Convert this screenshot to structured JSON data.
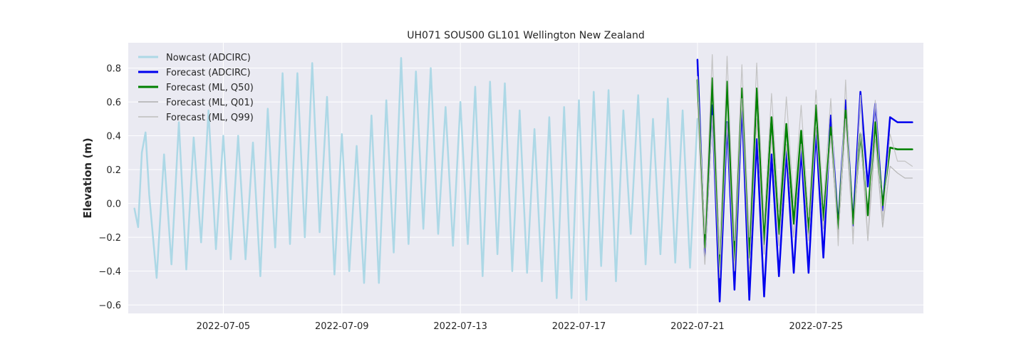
{
  "chart_data": {
    "type": "line",
    "title": "UH071 SOUS00 GL101 Wellington New Zealand",
    "xlabel": "",
    "ylabel": "Elevation (m)",
    "x_axis": "date",
    "xlim": [
      "2022-07-01T19:00",
      "2022-07-28T15:00"
    ],
    "ylim": [
      -0.65,
      0.95
    ],
    "xticks": [
      "2022-07-05",
      "2022-07-09",
      "2022-07-13",
      "2022-07-17",
      "2022-07-21",
      "2022-07-25"
    ],
    "yticks": [
      -0.6,
      -0.4,
      -0.2,
      0.0,
      0.2,
      0.4,
      0.6,
      0.8
    ],
    "ytick_labels": [
      "−0.6",
      "−0.4",
      "−0.2",
      "0.0",
      "0.2",
      "0.4",
      "0.6",
      "0.8"
    ],
    "grid": true,
    "legend_position": "upper-left",
    "background_color": "#eaeaf2",
    "series": [
      {
        "name": "Nowcast (ADCIRC)",
        "color": "#add8e6",
        "width": 2.5,
        "x": [
          "2022-07-02T00:00",
          "2022-07-02T03:00",
          "2022-07-02T06:00",
          "2022-07-02T09:00",
          "2022-07-02T12:00",
          "2022-07-02T18:00",
          "2022-07-03T00:00",
          "2022-07-03T06:00",
          "2022-07-03T12:00",
          "2022-07-03T18:00",
          "2022-07-04T00:00",
          "2022-07-04T06:00",
          "2022-07-04T12:00",
          "2022-07-04T18:00",
          "2022-07-05T00:00",
          "2022-07-05T06:00",
          "2022-07-05T12:00",
          "2022-07-05T18:00",
          "2022-07-06T00:00",
          "2022-07-06T06:00",
          "2022-07-06T12:00",
          "2022-07-06T18:00",
          "2022-07-07T00:00",
          "2022-07-07T06:00",
          "2022-07-07T12:00",
          "2022-07-07T18:00",
          "2022-07-08T00:00",
          "2022-07-08T06:00",
          "2022-07-08T12:00",
          "2022-07-08T18:00",
          "2022-07-09T00:00",
          "2022-07-09T06:00",
          "2022-07-09T12:00",
          "2022-07-09T18:00",
          "2022-07-10T00:00",
          "2022-07-10T06:00",
          "2022-07-10T12:00",
          "2022-07-10T18:00",
          "2022-07-11T00:00",
          "2022-07-11T06:00",
          "2022-07-11T12:00",
          "2022-07-11T18:00",
          "2022-07-12T00:00",
          "2022-07-12T06:00",
          "2022-07-12T12:00",
          "2022-07-12T18:00",
          "2022-07-13T00:00",
          "2022-07-13T06:00",
          "2022-07-13T12:00",
          "2022-07-13T18:00",
          "2022-07-14T00:00",
          "2022-07-14T06:00",
          "2022-07-14T12:00",
          "2022-07-14T18:00",
          "2022-07-15T00:00",
          "2022-07-15T06:00",
          "2022-07-15T12:00",
          "2022-07-15T18:00",
          "2022-07-16T00:00",
          "2022-07-16T06:00",
          "2022-07-16T12:00",
          "2022-07-16T18:00",
          "2022-07-17T00:00",
          "2022-07-17T06:00",
          "2022-07-17T12:00",
          "2022-07-17T18:00",
          "2022-07-18T00:00",
          "2022-07-18T06:00",
          "2022-07-18T12:00",
          "2022-07-18T18:00",
          "2022-07-19T00:00",
          "2022-07-19T06:00",
          "2022-07-19T12:00",
          "2022-07-19T18:00",
          "2022-07-20T00:00",
          "2022-07-20T06:00",
          "2022-07-20T12:00",
          "2022-07-20T18:00",
          "2022-07-21T00:00"
        ],
        "y": [
          -0.03,
          -0.14,
          0.3,
          0.42,
          0.05,
          -0.44,
          0.29,
          -0.36,
          0.48,
          -0.39,
          0.39,
          -0.23,
          0.55,
          -0.27,
          0.4,
          -0.33,
          0.4,
          -0.33,
          0.36,
          -0.43,
          0.56,
          -0.26,
          0.77,
          -0.24,
          0.77,
          -0.2,
          0.83,
          -0.17,
          0.63,
          -0.42,
          0.41,
          -0.4,
          0.34,
          -0.47,
          0.52,
          -0.47,
          0.61,
          -0.29,
          0.86,
          -0.24,
          0.78,
          -0.15,
          0.8,
          -0.18,
          0.57,
          -0.25,
          0.6,
          -0.24,
          0.69,
          -0.43,
          0.72,
          -0.3,
          0.71,
          -0.4,
          0.55,
          -0.41,
          0.44,
          -0.46,
          0.51,
          -0.56,
          0.57,
          -0.56,
          0.61,
          -0.57,
          0.66,
          -0.37,
          0.67,
          -0.46,
          0.55,
          -0.18,
          0.64,
          -0.36,
          0.5,
          -0.3,
          0.62,
          -0.35,
          0.55,
          -0.38,
          0.5
        ]
      },
      {
        "name": "Forecast (ADCIRC)",
        "color": "#0000ee",
        "width": 2.5,
        "x": [
          "2022-07-21T00:00",
          "2022-07-21T06:00",
          "2022-07-21T12:00",
          "2022-07-21T18:00",
          "2022-07-22T00:00",
          "2022-07-22T06:00",
          "2022-07-22T12:00",
          "2022-07-22T18:00",
          "2022-07-23T00:00",
          "2022-07-23T06:00",
          "2022-07-23T12:00",
          "2022-07-23T18:00",
          "2022-07-24T00:00",
          "2022-07-24T06:00",
          "2022-07-24T12:00",
          "2022-07-24T18:00",
          "2022-07-25T00:00",
          "2022-07-25T06:00",
          "2022-07-25T12:00",
          "2022-07-25T18:00",
          "2022-07-26T00:00",
          "2022-07-26T06:00",
          "2022-07-26T12:00",
          "2022-07-26T18:00",
          "2022-07-27T00:00",
          "2022-07-27T06:00",
          "2022-07-27T12:00",
          "2022-07-27T18:00",
          "2022-07-28T00:00",
          "2022-07-28T06:00"
        ],
        "y": [
          0.85,
          -0.31,
          0.58,
          -0.58,
          0.48,
          -0.51,
          0.6,
          -0.57,
          0.38,
          -0.55,
          0.29,
          -0.43,
          0.31,
          -0.41,
          0.32,
          -0.41,
          0.43,
          -0.32,
          0.52,
          -0.14,
          0.61,
          -0.13,
          0.66,
          0.1,
          0.59,
          -0.04,
          0.51,
          0.48,
          0.48,
          0.48
        ]
      },
      {
        "name": "Forecast (ML, Q50)",
        "color": "#008000",
        "width": 2.5,
        "x": [
          "2022-07-21T00:00",
          "2022-07-21T06:00",
          "2022-07-21T12:00",
          "2022-07-21T18:00",
          "2022-07-22T00:00",
          "2022-07-22T06:00",
          "2022-07-22T12:00",
          "2022-07-22T18:00",
          "2022-07-23T00:00",
          "2022-07-23T06:00",
          "2022-07-23T12:00",
          "2022-07-23T18:00",
          "2022-07-24T00:00",
          "2022-07-24T06:00",
          "2022-07-24T12:00",
          "2022-07-24T18:00",
          "2022-07-25T00:00",
          "2022-07-25T06:00",
          "2022-07-25T12:00",
          "2022-07-25T18:00",
          "2022-07-26T00:00",
          "2022-07-26T06:00",
          "2022-07-26T12:00",
          "2022-07-26T18:00",
          "2022-07-27T00:00",
          "2022-07-27T06:00",
          "2022-07-27T12:00",
          "2022-07-27T18:00",
          "2022-07-28T00:00",
          "2022-07-28T06:00"
        ],
        "y": [
          0.73,
          -0.26,
          0.74,
          -0.38,
          0.72,
          -0.34,
          0.68,
          -0.32,
          0.68,
          -0.24,
          0.51,
          -0.18,
          0.47,
          -0.12,
          0.43,
          -0.18,
          0.58,
          -0.1,
          0.45,
          -0.15,
          0.55,
          -0.12,
          0.41,
          -0.07,
          0.48,
          -0.01,
          0.33,
          0.32,
          0.32,
          0.32
        ]
      },
      {
        "name": "Forecast (ML, Q01)",
        "color": "#b8b8b8",
        "width": 1.2,
        "x": [
          "2022-07-21T00:00",
          "2022-07-21T06:00",
          "2022-07-21T12:00",
          "2022-07-21T18:00",
          "2022-07-22T00:00",
          "2022-07-22T06:00",
          "2022-07-22T12:00",
          "2022-07-22T18:00",
          "2022-07-23T00:00",
          "2022-07-23T06:00",
          "2022-07-23T12:00",
          "2022-07-23T18:00",
          "2022-07-24T00:00",
          "2022-07-24T06:00",
          "2022-07-24T12:00",
          "2022-07-24T18:00",
          "2022-07-25T00:00",
          "2022-07-25T06:00",
          "2022-07-25T12:00",
          "2022-07-25T18:00",
          "2022-07-26T00:00",
          "2022-07-26T06:00",
          "2022-07-26T12:00",
          "2022-07-26T18:00",
          "2022-07-27T00:00",
          "2022-07-27T06:00",
          "2022-07-27T12:00",
          "2022-07-27T18:00",
          "2022-07-28T00:00",
          "2022-07-28T06:00"
        ],
        "y": [
          0.6,
          -0.36,
          0.52,
          -0.44,
          0.48,
          -0.4,
          0.62,
          -0.4,
          0.5,
          -0.3,
          0.4,
          -0.25,
          0.35,
          -0.2,
          0.35,
          -0.22,
          0.45,
          -0.15,
          0.4,
          -0.2,
          0.5,
          -0.2,
          0.42,
          -0.22,
          0.38,
          -0.14,
          0.22,
          0.18,
          0.15,
          0.15
        ]
      },
      {
        "name": "Forecast (ML, Q99)",
        "color": "#c4c4c4",
        "width": 1.2,
        "x": [
          "2022-07-21T00:00",
          "2022-07-21T06:00",
          "2022-07-21T12:00",
          "2022-07-21T18:00",
          "2022-07-22T00:00",
          "2022-07-22T06:00",
          "2022-07-22T12:00",
          "2022-07-22T18:00",
          "2022-07-23T00:00",
          "2022-07-23T06:00",
          "2022-07-23T12:00",
          "2022-07-23T18:00",
          "2022-07-24T00:00",
          "2022-07-24T06:00",
          "2022-07-24T12:00",
          "2022-07-24T18:00",
          "2022-07-25T00:00",
          "2022-07-25T06:00",
          "2022-07-25T12:00",
          "2022-07-25T18:00",
          "2022-07-26T00:00",
          "2022-07-26T06:00",
          "2022-07-26T12:00",
          "2022-07-26T18:00",
          "2022-07-27T00:00",
          "2022-07-27T06:00",
          "2022-07-27T12:00",
          "2022-07-27T18:00",
          "2022-07-28T00:00",
          "2022-07-28T06:00"
        ],
        "y": [
          0.75,
          -0.18,
          0.88,
          -0.3,
          0.87,
          -0.22,
          0.82,
          -0.2,
          0.83,
          -0.1,
          0.65,
          -0.05,
          0.63,
          0.0,
          0.58,
          -0.08,
          0.67,
          0.0,
          0.62,
          -0.25,
          0.73,
          -0.24,
          0.64,
          -0.22,
          0.61,
          -0.1,
          0.41,
          0.25,
          0.25,
          0.22
        ]
      }
    ]
  }
}
